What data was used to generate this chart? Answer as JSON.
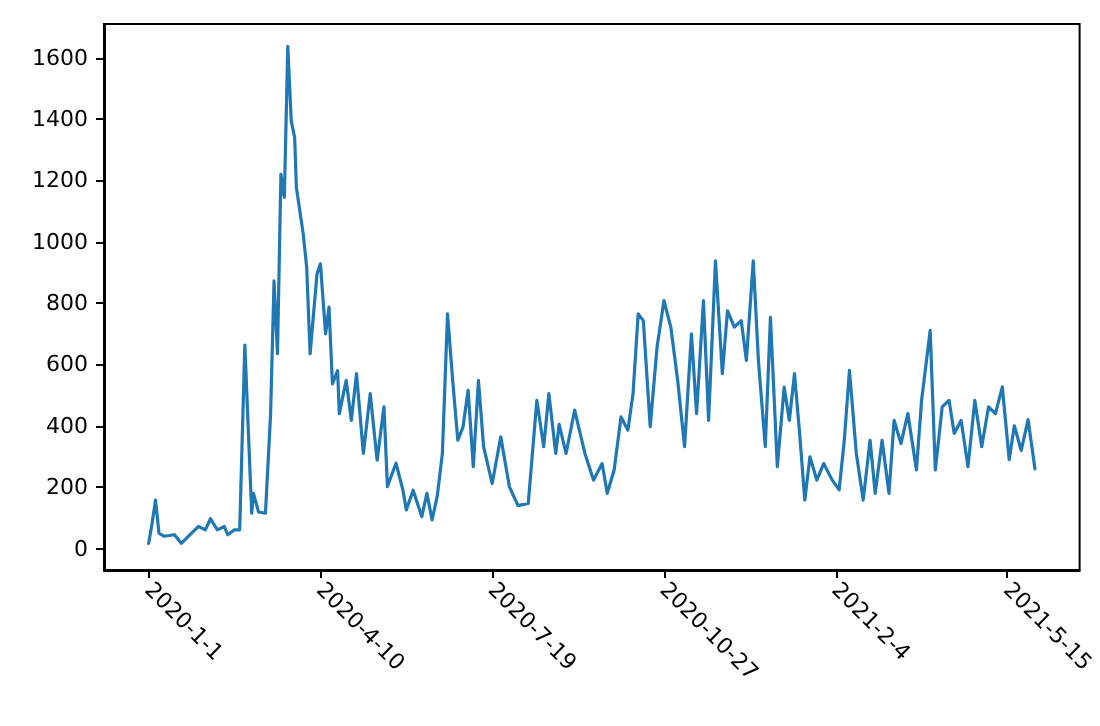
{
  "chart_data": {
    "type": "line",
    "color": "#1f77b4",
    "x": [
      "2020-01-01",
      "2020-01-03",
      "2020-01-05",
      "2020-01-07",
      "2020-01-10",
      "2020-01-16",
      "2020-01-20",
      "2020-01-26",
      "2020-01-30",
      "2020-02-03",
      "2020-02-06",
      "2020-02-10",
      "2020-02-14",
      "2020-02-16",
      "2020-02-20",
      "2020-02-23",
      "2020-02-26",
      "2020-03-01",
      "2020-03-02",
      "2020-03-05",
      "2020-03-09",
      "2020-03-12",
      "2020-03-14",
      "2020-03-16",
      "2020-03-18",
      "2020-03-20",
      "2020-03-22",
      "2020-03-24",
      "2020-03-26",
      "2020-03-27",
      "2020-03-29",
      "2020-03-31",
      "2020-04-02",
      "2020-04-04",
      "2020-04-08",
      "2020-04-10",
      "2020-04-13",
      "2020-04-15",
      "2020-04-17",
      "2020-04-20",
      "2020-04-21",
      "2020-04-25",
      "2020-04-28",
      "2020-05-01",
      "2020-05-05",
      "2020-05-09",
      "2020-05-13",
      "2020-05-17",
      "2020-05-19",
      "2020-05-24",
      "2020-05-28",
      "2020-05-30",
      "2020-06-03",
      "2020-06-08",
      "2020-06-11",
      "2020-06-14",
      "2020-06-17",
      "2020-06-20",
      "2020-06-23",
      "2020-06-26",
      "2020-06-29",
      "2020-07-02",
      "2020-07-05",
      "2020-07-08",
      "2020-07-11",
      "2020-07-14",
      "2020-07-19",
      "2020-07-24",
      "2020-07-29",
      "2020-08-03",
      "2020-08-09",
      "2020-08-14",
      "2020-08-18",
      "2020-08-21",
      "2020-08-25",
      "2020-08-27",
      "2020-08-31",
      "2020-09-05",
      "2020-09-11",
      "2020-09-16",
      "2020-09-21",
      "2020-09-24",
      "2020-09-28",
      "2020-10-02",
      "2020-10-06",
      "2020-10-09",
      "2020-10-12",
      "2020-10-15",
      "2020-10-19",
      "2020-10-23",
      "2020-10-27",
      "2020-10-31",
      "2020-11-04",
      "2020-11-08",
      "2020-11-12",
      "2020-11-15",
      "2020-11-19",
      "2020-11-22",
      "2020-11-26",
      "2020-11-30",
      "2020-12-03",
      "2020-12-07",
      "2020-12-11",
      "2020-12-14",
      "2020-12-18",
      "2020-12-21",
      "2020-12-25",
      "2020-12-28",
      "2021-01-01",
      "2021-01-05",
      "2021-01-08",
      "2021-01-11",
      "2021-01-14",
      "2021-01-17",
      "2021-01-20",
      "2021-01-24",
      "2021-01-28",
      "2021-02-02",
      "2021-02-06",
      "2021-02-09",
      "2021-02-12",
      "2021-02-16",
      "2021-02-20",
      "2021-02-24",
      "2021-02-27",
      "2021-03-03",
      "2021-03-07",
      "2021-03-10",
      "2021-03-14",
      "2021-03-18",
      "2021-03-23",
      "2021-03-26",
      "2021-03-31",
      "2021-04-03",
      "2021-04-07",
      "2021-04-11",
      "2021-04-14",
      "2021-04-18",
      "2021-04-22",
      "2021-04-26",
      "2021-04-30",
      "2021-05-04",
      "2021-05-08",
      "2021-05-12",
      "2021-05-16",
      "2021-05-19",
      "2021-05-23",
      "2021-05-27",
      "2021-05-31"
    ],
    "values": [
      17,
      82,
      158,
      50,
      40,
      45,
      17,
      50,
      72,
      61,
      97,
      61,
      72,
      45,
      61,
      61,
      663,
      115,
      180,
      119,
      115,
      440,
      873,
      635,
      1220,
      1145,
      1637,
      1394,
      1340,
      1177,
      1101,
      1025,
      917,
      635,
      895,
      928,
      700,
      787,
      537,
      580,
      440,
      548,
      418,
      570,
      310,
      505,
      288,
      462,
      202,
      278,
      191,
      126,
      190,
      104,
      180,
      93,
      170,
      310,
      765,
      548,
      353,
      396,
      516,
      267,
      548,
      332,
      212,
      364,
      202,
      140,
      147,
      483,
      332,
      505,
      310,
      405,
      310,
      451,
      310,
      223,
      277,
      180,
      256,
      429,
      386,
      505,
      765,
      743,
      397,
      657,
      808,
      722,
      548,
      332,
      700,
      440,
      808,
      418,
      938,
      570,
      775,
      722,
      743,
      613,
      938,
      613,
      332,
      754,
      267,
      526,
      418,
      570,
      375,
      158,
      299,
      223,
      277,
      223,
      191,
      353,
      581,
      310,
      158,
      353,
      180,
      353,
      180,
      418,
      342,
      440,
      256,
      483,
      711,
      256,
      462,
      483,
      375,
      418,
      267,
      483,
      332,
      462,
      440,
      527,
      290,
      400,
      320,
      420,
      260
    ],
    "xlim": [
      "2019-12-06",
      "2021-06-26"
    ],
    "xticks": [
      {
        "value": "2020-01-01",
        "label": "2020-1-1"
      },
      {
        "value": "2020-04-10",
        "label": "2020-4-10"
      },
      {
        "value": "2020-07-19",
        "label": "2020-7-19"
      },
      {
        "value": "2020-10-27",
        "label": "2020-10-27"
      },
      {
        "value": "2021-02-04",
        "label": "2021-2-4"
      },
      {
        "value": "2021-05-15",
        "label": "2021-5-15"
      }
    ],
    "ylim": [
      -70,
      1710
    ],
    "yticks": [
      0,
      200,
      400,
      600,
      800,
      1000,
      1200,
      1400,
      1600
    ]
  }
}
